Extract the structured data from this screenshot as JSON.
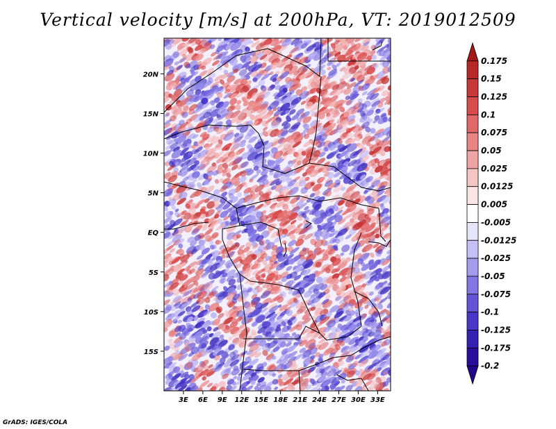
{
  "title": "Vertical velocity [m/s] at 200hPa, VT: 2019012509",
  "credit": "GrADS: IGES/COLA",
  "colors": {
    "positive_max": "#a01616",
    "neutral": "#ffffff",
    "negative_max": "#2a0a9a"
  },
  "map": {
    "lon_range": [
      0,
      35
    ],
    "lat_range": [
      -20,
      24.5
    ],
    "lon_ticks": [
      3,
      6,
      9,
      12,
      15,
      18,
      21,
      24,
      27,
      30,
      33
    ],
    "lon_tick_labels": [
      "3E",
      "6E",
      "9E",
      "12E",
      "15E",
      "18E",
      "21E",
      "24E",
      "27E",
      "30E",
      "33E"
    ],
    "lat_ticks": [
      20,
      15,
      10,
      5,
      0,
      -5,
      -10,
      -15
    ],
    "lat_tick_labels": [
      "20N",
      "15N",
      "10N",
      "5N",
      "EQ",
      "5S",
      "10S",
      "15S"
    ]
  },
  "colorbar": {
    "levels": [
      "0.175",
      "0.15",
      "0.125",
      "0.1",
      "0.075",
      "0.05",
      "0.025",
      "0.0125",
      "0.005",
      "-0.005",
      "-0.0125",
      "-0.025",
      "-0.05",
      "-0.075",
      "-0.1",
      "-0.125",
      "-0.175",
      "-0.2"
    ],
    "colors": [
      "#a31818",
      "#b82828",
      "#c93838",
      "#d84c4c",
      "#e06868",
      "#e88686",
      "#efa5a5",
      "#f5c6c6",
      "#fbe5e5",
      "#ffffff",
      "#e6e4fb",
      "#c6c1f5",
      "#a49cec",
      "#8276e2",
      "#6355d6",
      "#4a36c8",
      "#3520b4",
      "#2a0d9c",
      "#22078a"
    ]
  }
}
